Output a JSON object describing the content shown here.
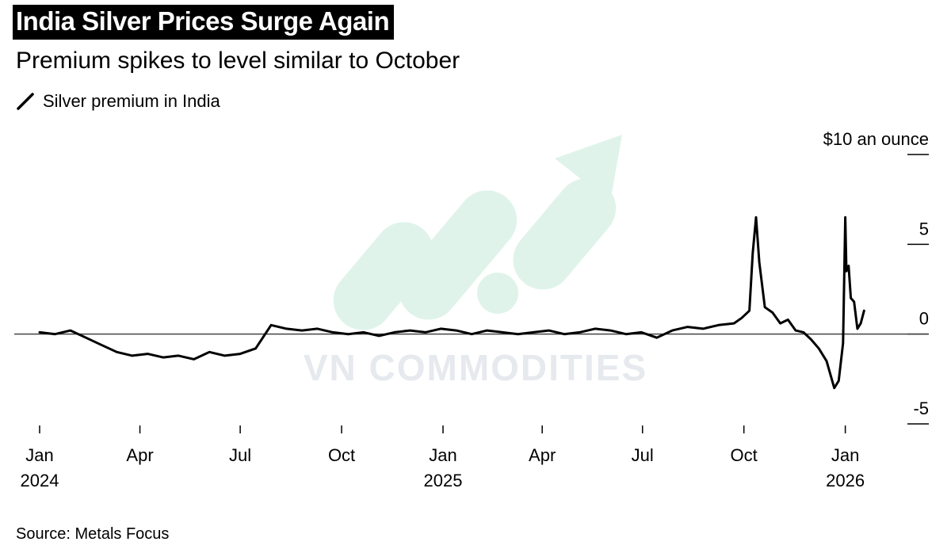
{
  "header": {
    "title": "India Silver Prices Surge Again",
    "subtitle": "Premium spikes to level similar to October",
    "legend_label": "Silver premium in India"
  },
  "footer": {
    "source": "Source: Metals Focus"
  },
  "watermark": {
    "text": "VN COMMODITIES"
  },
  "colors": {
    "line": "#000000",
    "title_bg": "#000000",
    "zero_line": "#444444",
    "watermark_green": "#dff3ea",
    "watermark_gray": "#e6e9ee"
  },
  "chart_data": {
    "type": "line",
    "title": "India Silver Prices Surge Again",
    "subtitle": "Premium spikes to level similar to October",
    "ylabel": "",
    "y_unit_label": "$10 an ounce",
    "ylim": [
      -5,
      10
    ],
    "yticks": [
      {
        "value": 10,
        "label": "$10 an ounce"
      },
      {
        "value": 5,
        "label": "5"
      },
      {
        "value": 0,
        "label": "0"
      },
      {
        "value": -5,
        "label": "-5"
      }
    ],
    "xlim": [
      "2024-01-01",
      "2026-01-25"
    ],
    "xticks": [
      {
        "date": "2024-01-01",
        "label": "Jan",
        "year": "2024"
      },
      {
        "date": "2024-04-01",
        "label": "Apr",
        "year": ""
      },
      {
        "date": "2024-07-01",
        "label": "Jul",
        "year": ""
      },
      {
        "date": "2024-10-01",
        "label": "Oct",
        "year": ""
      },
      {
        "date": "2025-01-01",
        "label": "Jan",
        "year": "2025"
      },
      {
        "date": "2025-04-01",
        "label": "Apr",
        "year": ""
      },
      {
        "date": "2025-07-01",
        "label": "Jul",
        "year": ""
      },
      {
        "date": "2025-10-01",
        "label": "Oct",
        "year": ""
      },
      {
        "date": "2026-01-01",
        "label": "Jan",
        "year": "2026"
      }
    ],
    "grid": false,
    "series": [
      {
        "name": "Silver premium in India",
        "x": [
          "2024-01-01",
          "2024-01-15",
          "2024-01-29",
          "2024-02-12",
          "2024-02-26",
          "2024-03-11",
          "2024-03-25",
          "2024-04-08",
          "2024-04-22",
          "2024-05-06",
          "2024-05-20",
          "2024-06-03",
          "2024-06-17",
          "2024-07-01",
          "2024-07-15",
          "2024-07-29",
          "2024-08-12",
          "2024-08-26",
          "2024-09-09",
          "2024-09-23",
          "2024-10-07",
          "2024-10-21",
          "2024-11-04",
          "2024-11-18",
          "2024-12-02",
          "2024-12-16",
          "2024-12-30",
          "2025-01-13",
          "2025-01-27",
          "2025-02-10",
          "2025-02-24",
          "2025-03-10",
          "2025-03-24",
          "2025-04-07",
          "2025-04-21",
          "2025-05-05",
          "2025-05-19",
          "2025-06-02",
          "2025-06-16",
          "2025-06-30",
          "2025-07-14",
          "2025-07-28",
          "2025-08-11",
          "2025-08-25",
          "2025-09-08",
          "2025-09-22",
          "2025-09-29",
          "2025-10-06",
          "2025-10-09",
          "2025-10-12",
          "2025-10-15",
          "2025-10-20",
          "2025-10-27",
          "2025-11-03",
          "2025-11-10",
          "2025-11-17",
          "2025-11-24",
          "2025-12-01",
          "2025-12-08",
          "2025-12-15",
          "2025-12-22",
          "2025-12-26",
          "2025-12-30",
          "2026-01-01",
          "2026-01-02",
          "2026-01-04",
          "2026-01-06",
          "2026-01-09",
          "2026-01-12",
          "2026-01-15",
          "2026-01-18"
        ],
        "y": [
          0.1,
          0.0,
          0.2,
          -0.2,
          -0.6,
          -1.0,
          -1.2,
          -1.1,
          -1.3,
          -1.2,
          -1.4,
          -1.0,
          -1.2,
          -1.1,
          -0.8,
          0.5,
          0.3,
          0.2,
          0.3,
          0.1,
          0.0,
          0.1,
          -0.1,
          0.1,
          0.2,
          0.1,
          0.3,
          0.2,
          0.0,
          0.2,
          0.1,
          0.0,
          0.1,
          0.2,
          0.0,
          0.1,
          0.3,
          0.2,
          0.0,
          0.1,
          -0.2,
          0.2,
          0.4,
          0.3,
          0.5,
          0.6,
          0.9,
          1.3,
          4.5,
          6.5,
          4.0,
          1.5,
          1.2,
          0.6,
          0.8,
          0.2,
          0.1,
          -0.3,
          -0.8,
          -1.5,
          -3.0,
          -2.6,
          -0.5,
          6.5,
          3.5,
          3.8,
          2.0,
          1.8,
          0.3,
          0.6,
          1.3
        ]
      }
    ]
  }
}
